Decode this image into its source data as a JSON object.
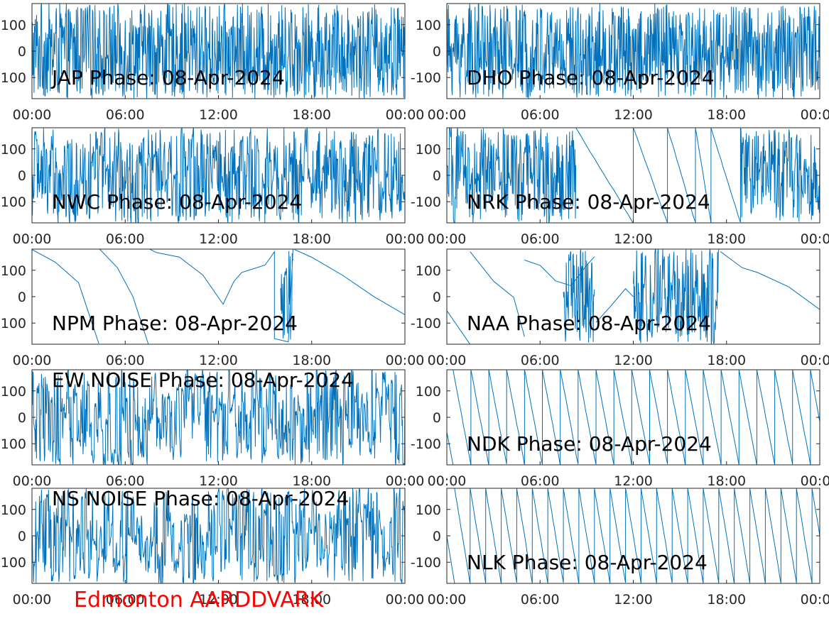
{
  "figure": {
    "footer_label": "Edmonton AARDDVARK",
    "footer_color": "#ff0000",
    "line_color": "#0072bd"
  },
  "chart_data": [
    {
      "type": "line",
      "title": "JAP Phase: 08-Apr-2024",
      "x_tick_labels": [
        "00:00",
        "06:00",
        "12:00",
        "18:00",
        "00:00"
      ],
      "y_tick_labels": [
        "100",
        "0",
        "100"
      ],
      "xlim": [
        0,
        24
      ],
      "ylim": [
        -180,
        180
      ],
      "grid": false,
      "series": [
        {
          "behavior": "noise",
          "density": 0.97
        }
      ]
    },
    {
      "type": "line",
      "title": "DHO Phase: 08-Apr-2024",
      "x_tick_labels": [
        "00:00",
        "06:00",
        "12:00",
        "18:00",
        "00:00"
      ],
      "y_tick_labels": [
        "100",
        "0",
        "-100"
      ],
      "xlim": [
        0,
        24
      ],
      "ylim": [
        -180,
        180
      ],
      "grid": false,
      "series": [
        {
          "behavior": "noise",
          "density": 0.98
        }
      ]
    },
    {
      "type": "line",
      "title": "NWC Phase: 08-Apr-2024",
      "x_tick_labels": [
        "00:00",
        "06:00",
        "12:00",
        "18:00",
        "00:00"
      ],
      "y_tick_labels": [
        "100",
        "0",
        "100"
      ],
      "xlim": [
        0,
        24
      ],
      "ylim": [
        -180,
        180
      ],
      "grid": false,
      "series": [
        {
          "behavior": "noise",
          "density": 0.7
        }
      ]
    },
    {
      "type": "line",
      "title": "NRK Phase: 08-Apr-2024",
      "x_tick_labels": [
        "00:00",
        "06:00",
        "12:00",
        "18:00",
        "00:00"
      ],
      "y_tick_labels": [
        "100",
        "0",
        "-100"
      ],
      "xlim": [
        0,
        24
      ],
      "ylim": [
        -180,
        180
      ],
      "grid": false,
      "series": [
        {
          "behavior": "mixed",
          "noise_intervals": [
            [
              0,
              8.3
            ],
            [
              18.9,
              24
            ]
          ],
          "sawtooth": [
            [
              8.3,
              12.0,
              180,
              -180
            ],
            [
              12.0,
              14.2,
              180,
              -180
            ],
            [
              14.2,
              16.0,
              180,
              -180
            ],
            [
              16.0,
              17.0,
              180,
              -180
            ],
            [
              17.0,
              18.9,
              180,
              -180
            ]
          ]
        }
      ]
    },
    {
      "type": "line",
      "title": "NPM Phase: 08-Apr-2024",
      "x_tick_labels": [
        "00:00",
        "06:00",
        "12:00",
        "18:00",
        "00:00"
      ],
      "y_tick_labels": [
        "100",
        "0",
        "100"
      ],
      "xlim": [
        0,
        24
      ],
      "ylim": [
        -180,
        180
      ],
      "grid": false,
      "series": [
        {
          "behavior": "segments",
          "points": [
            [
              0,
              180
            ],
            [
              1.5,
              130
            ],
            [
              3.0,
              50
            ],
            [
              4.3,
              -180
            ],
            null,
            [
              4.3,
              180
            ],
            [
              5.5,
              110
            ],
            [
              6.5,
              0
            ],
            [
              7.5,
              -180
            ],
            null,
            [
              7.6,
              180
            ],
            [
              8.0,
              170
            ],
            [
              9.5,
              150
            ],
            [
              11.0,
              80
            ],
            [
              12.3,
              -30
            ],
            [
              13.0,
              60
            ],
            [
              13.5,
              90
            ],
            [
              14.0,
              100
            ],
            [
              15.0,
              120
            ],
            [
              15.6,
              170
            ],
            [
              15.6,
              -160
            ],
            [
              16.5,
              -170
            ],
            [
              16.8,
              180
            ],
            null,
            [
              16.9,
              180
            ],
            [
              18.0,
              150
            ],
            [
              20.0,
              80
            ],
            [
              22.0,
              0
            ],
            [
              24.0,
              -70
            ]
          ],
          "noise_intervals": [
            [
              16.0,
              16.8
            ]
          ]
        }
      ]
    },
    {
      "type": "line",
      "title": "NAA Phase: 08-Apr-2024",
      "x_tick_labels": [
        "00:00",
        "06:00",
        "12:00",
        "18:00",
        "00:00"
      ],
      "y_tick_labels": [
        "100",
        "0",
        "-100"
      ],
      "xlim": [
        0,
        24
      ],
      "ylim": [
        -180,
        180
      ],
      "grid": false,
      "series": [
        {
          "behavior": "mixed",
          "noise_intervals": [
            [
              7.5,
              9.5
            ],
            [
              12.0,
              17.5
            ]
          ],
          "points": [
            [
              0,
              -50
            ],
            [
              1.5,
              -180
            ],
            null,
            [
              1.5,
              170
            ],
            [
              3.0,
              60
            ],
            [
              4.3,
              0
            ],
            [
              5.0,
              -150
            ],
            null,
            [
              5.0,
              140
            ],
            [
              6.0,
              120
            ],
            [
              7.0,
              60
            ],
            [
              8.0,
              40
            ],
            [
              9.0,
              120
            ],
            [
              9.5,
              150
            ],
            null,
            [
              9.6,
              -100
            ],
            [
              10.5,
              -40
            ],
            [
              11.5,
              30
            ],
            [
              12.0,
              0
            ],
            null,
            [
              17.6,
              170
            ],
            [
              19.0,
              110
            ],
            [
              20.0,
              90
            ],
            [
              22.0,
              40
            ],
            [
              24.0,
              -50
            ]
          ]
        }
      ]
    },
    {
      "type": "line",
      "title": "EW NOISE Phase: 08-Apr-2024",
      "x_tick_labels": [
        "00:00",
        "06:00",
        "12:00",
        "18:00",
        "00:00"
      ],
      "y_tick_labels": [
        "100",
        "0",
        "100"
      ],
      "xlim": [
        0,
        24
      ],
      "ylim": [
        -180,
        180
      ],
      "grid": false,
      "series": [
        {
          "behavior": "noise",
          "density": 0.55
        }
      ]
    },
    {
      "type": "line",
      "title": "NDK Phase: 08-Apr-2024",
      "x_tick_labels": [
        "00:00",
        "06:00",
        "12:00",
        "18:00",
        "00:00"
      ],
      "y_tick_labels": [
        "100",
        "0",
        "-100"
      ],
      "xlim": [
        0,
        24
      ],
      "ylim": [
        -180,
        180
      ],
      "grid": false,
      "series": [
        {
          "behavior": "sawtooth",
          "period_hours": 1.15,
          "start_hour": 0.4,
          "from": 180,
          "to": -180
        }
      ]
    },
    {
      "type": "line",
      "title": "NS NOISE Phase: 08-Apr-2024",
      "x_tick_labels": [
        "00:00",
        "06:00",
        "12:00",
        "18:00",
        "00:00"
      ],
      "y_tick_labels": [
        "100",
        "0",
        "100"
      ],
      "xlim": [
        0,
        24
      ],
      "ylim": [
        -180,
        180
      ],
      "grid": false,
      "series": [
        {
          "behavior": "noise",
          "density": 0.55
        }
      ]
    },
    {
      "type": "line",
      "title": "NLK Phase: 08-Apr-2024",
      "x_tick_labels": [
        "00:00",
        "06:00",
        "12:00",
        "18:00",
        "00:00"
      ],
      "y_tick_labels": [
        "100",
        "0",
        "-100"
      ],
      "xlim": [
        0,
        24
      ],
      "ylim": [
        -180,
        180
      ],
      "grid": false,
      "series": [
        {
          "behavior": "sawtooth",
          "period_hours": 1.0,
          "start_hour": 0.5,
          "from": 180,
          "to": -180
        }
      ]
    }
  ]
}
